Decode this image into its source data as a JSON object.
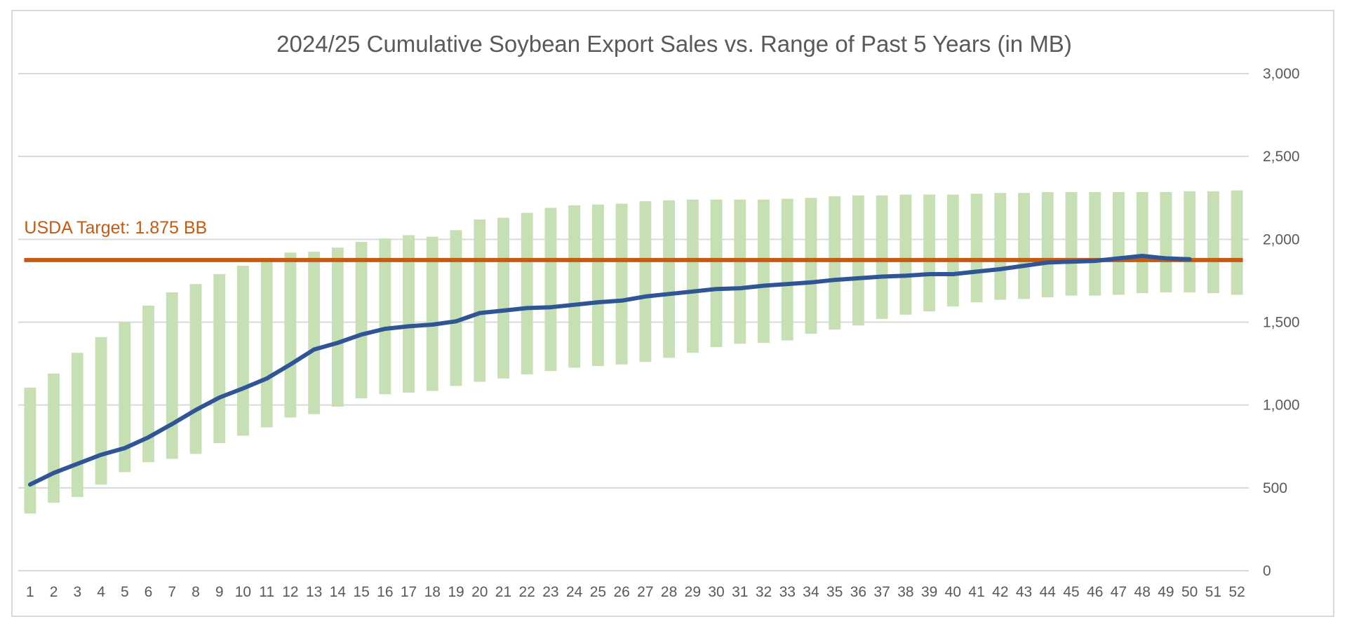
{
  "chart_data": {
    "type": "bar",
    "title": "2024/25 Cumulative Soybean Export Sales vs. Range of Past 5 Years (in MB)",
    "xlabel": "",
    "ylabel": "",
    "ylim": [
      0,
      3000
    ],
    "yticks": [
      0,
      500,
      1000,
      1500,
      2000,
      2500,
      3000
    ],
    "ytick_labels": [
      "0",
      "500",
      "1,000",
      "1,500",
      "2,000",
      "2,500",
      "3,000"
    ],
    "y_axis_position": "right",
    "grid": true,
    "legend": "none",
    "categories": [
      "1",
      "2",
      "3",
      "4",
      "5",
      "6",
      "7",
      "8",
      "9",
      "10",
      "11",
      "12",
      "13",
      "14",
      "15",
      "16",
      "17",
      "18",
      "19",
      "20",
      "21",
      "22",
      "23",
      "24",
      "25",
      "26",
      "27",
      "28",
      "29",
      "30",
      "31",
      "32",
      "33",
      "34",
      "35",
      "36",
      "37",
      "38",
      "39",
      "40",
      "41",
      "42",
      "43",
      "44",
      "45",
      "46",
      "47",
      "48",
      "49",
      "50",
      "51",
      "52"
    ],
    "range_low": [
      345,
      410,
      445,
      520,
      595,
      655,
      675,
      705,
      770,
      815,
      865,
      925,
      945,
      990,
      1040,
      1065,
      1075,
      1085,
      1115,
      1140,
      1160,
      1185,
      1205,
      1225,
      1235,
      1245,
      1260,
      1285,
      1315,
      1350,
      1370,
      1375,
      1390,
      1430,
      1455,
      1480,
      1520,
      1545,
      1565,
      1595,
      1620,
      1635,
      1640,
      1650,
      1660,
      1660,
      1665,
      1675,
      1680,
      1680,
      1675,
      1665
    ],
    "range_high": [
      1105,
      1190,
      1315,
      1410,
      1500,
      1600,
      1680,
      1730,
      1790,
      1840,
      1885,
      1920,
      1925,
      1950,
      1985,
      2005,
      2025,
      2015,
      2055,
      2120,
      2130,
      2160,
      2190,
      2205,
      2210,
      2215,
      2230,
      2235,
      2240,
      2240,
      2240,
      2240,
      2245,
      2250,
      2260,
      2265,
      2265,
      2270,
      2270,
      2270,
      2275,
      2280,
      2280,
      2285,
      2285,
      2285,
      2285,
      2285,
      2285,
      2290,
      2290,
      2295
    ],
    "current_2024_25": [
      520,
      590,
      645,
      700,
      740,
      805,
      885,
      970,
      1045,
      1100,
      1160,
      1245,
      1335,
      1375,
      1425,
      1460,
      1475,
      1485,
      1505,
      1555,
      1570,
      1585,
      1590,
      1605,
      1620,
      1630,
      1655,
      1670,
      1685,
      1700,
      1705,
      1720,
      1730,
      1740,
      1755,
      1765,
      1775,
      1780,
      1790,
      1790,
      1805,
      1820,
      1840,
      1860,
      1865,
      1870,
      1885,
      1900,
      1885,
      1880
    ],
    "target": {
      "label": "USDA Target: 1.875 BB",
      "value": 1875
    },
    "colors": {
      "range_bars": "#c6e0b4",
      "current_line": "#2f5597",
      "target_line": "#c55a11",
      "gridline": "#d9d9d9",
      "text": "#595959"
    }
  }
}
